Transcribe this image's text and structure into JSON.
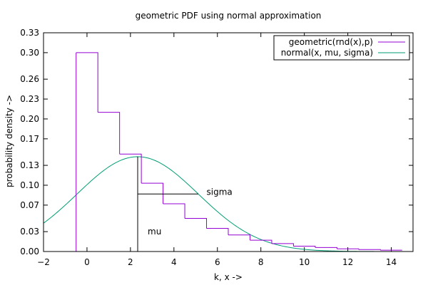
{
  "chart_data": {
    "type": "line",
    "title": "geometric PDF using normal approximation",
    "xlabel": "k, x ->",
    "ylabel": "probability density ->",
    "xlim": [
      -2,
      15
    ],
    "ylim": [
      0,
      0.33
    ],
    "x_ticks": [
      -2,
      0,
      2,
      4,
      6,
      8,
      10,
      12,
      14
    ],
    "y_ticks": [
      0,
      0.03,
      0.07,
      0.1,
      0.13,
      0.17,
      0.2,
      0.23,
      0.26,
      0.3,
      0.33
    ],
    "x_tick_labels": [
      "−2",
      "0",
      "2",
      "4",
      "6",
      "8",
      "10",
      "12",
      "14"
    ],
    "y_tick_labels": [
      "0.00",
      "0.03",
      "0.07",
      "0.10",
      "0.13",
      "0.17",
      "0.20",
      "0.23",
      "0.26",
      "0.30",
      "0.33"
    ],
    "grid": false,
    "legend_position": "top-right",
    "parameters": {
      "p": 0.3,
      "mu": 2.333,
      "sigma": 2.789
    },
    "series": [
      {
        "name": "geometric(rnd(x),p)",
        "kind": "step",
        "color": "#9400d3",
        "x": [
          0,
          1,
          2,
          3,
          4,
          5,
          6,
          7,
          8,
          9,
          10,
          11,
          12,
          13,
          14
        ],
        "values": [
          0.3,
          0.21,
          0.147,
          0.103,
          0.072,
          0.05,
          0.035,
          0.025,
          0.017,
          0.012,
          0.008,
          0.006,
          0.004,
          0.003,
          0.002
        ]
      },
      {
        "name": "normal(x, mu, sigma)",
        "kind": "curve",
        "color": "#009e73",
        "function": "normal",
        "mu": 2.333,
        "sigma": 2.789
      }
    ],
    "annotations": [
      {
        "label": "mu",
        "x": 2.333,
        "y": 0.03
      },
      {
        "label": "sigma",
        "x": 5.5,
        "y": 0.09
      }
    ]
  }
}
